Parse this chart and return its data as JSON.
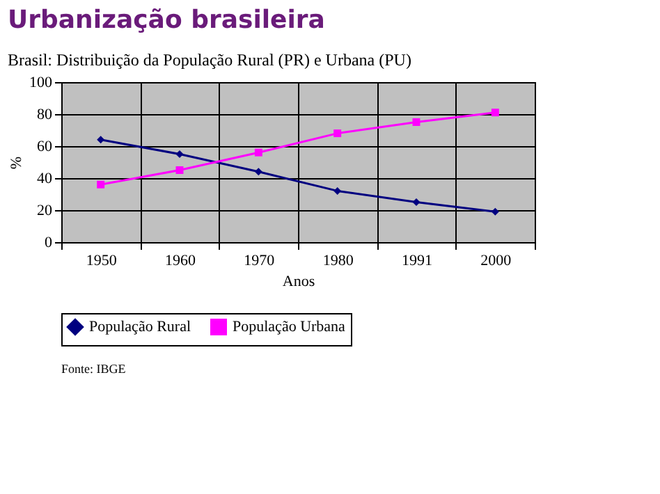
{
  "chart_data": {
    "type": "line",
    "title": "Urbanização brasileira",
    "subtitle": "Brasil: Distribuição da População Rural (PR) e Urbana (PU)",
    "xlabel": "Anos",
    "ylabel": "%",
    "categories": [
      "1950",
      "1960",
      "1970",
      "1980",
      "1991",
      "2000"
    ],
    "series": [
      {
        "name": "População Rural",
        "color": "#000080",
        "marker": "diamond",
        "values": [
          64,
          55,
          44,
          32,
          25,
          19
        ]
      },
      {
        "name": "População Urbana",
        "color": "#ff00ff",
        "marker": "square",
        "values": [
          36,
          45,
          56,
          68,
          75,
          81
        ]
      }
    ],
    "ylim": [
      0,
      100
    ],
    "yticks": [
      0,
      20,
      40,
      60,
      80,
      100
    ],
    "grid": true,
    "legend": "bottom",
    "annotations": [
      "Fonte: IBGE"
    ]
  }
}
